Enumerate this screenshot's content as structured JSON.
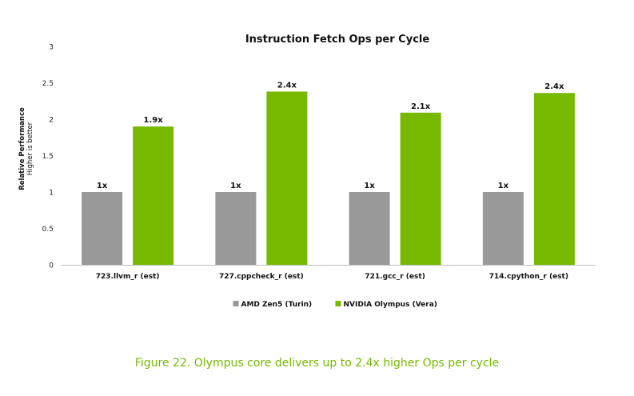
{
  "chart_data": {
    "type": "bar",
    "title": "Instruction Fetch Ops per Cycle",
    "ylabel": "Relative Performance",
    "ylabel_sub": "Higher is better",
    "xlabel": "",
    "ylim": [
      0,
      3
    ],
    "yticks": [
      "0",
      "0.5",
      "1",
      "1.5",
      "2",
      "2.5",
      "3"
    ],
    "grid": false,
    "legend_position": "bottom-center",
    "categories": [
      "723.llvm_r (est)",
      "727.cppcheck_r (est)",
      "721.gcc_r (est)",
      "714.cpython_r (est)"
    ],
    "series": [
      {
        "name": "AMD Zen5 (Turin)",
        "color": "#999999",
        "values": [
          1,
          1,
          1,
          1
        ],
        "labels": [
          "1x",
          "1x",
          "1x",
          "1x"
        ]
      },
      {
        "name": "NVIDIA Olympus (Vera)",
        "color": "#76b900",
        "values": [
          1.9,
          2.38,
          2.09,
          2.36
        ],
        "labels": [
          "1.9x",
          "2.4x",
          "2.1x",
          "2.4x"
        ]
      }
    ]
  },
  "caption": "Figure 22. Olympus core delivers up to 2.4x higher Ops per cycle"
}
